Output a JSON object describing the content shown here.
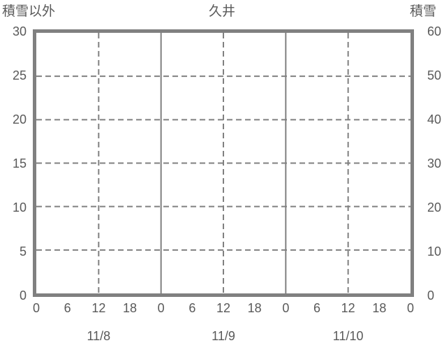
{
  "colors": {
    "line": "#808080",
    "text": "#595959",
    "background": "#ffffff"
  },
  "chart_data": {
    "type": "line",
    "title": "久井",
    "left_axis": {
      "label": "積雪以外",
      "ticks": [
        0,
        5,
        10,
        15,
        20,
        25,
        30
      ],
      "range": [
        0,
        30
      ]
    },
    "right_axis": {
      "label": "積雪",
      "ticks": [
        0,
        10,
        20,
        30,
        40,
        50,
        60
      ],
      "range": [
        0,
        60
      ]
    },
    "x_axis": {
      "hour_tick_labels": [
        "0",
        "6",
        "12",
        "18",
        "0",
        "6",
        "12",
        "18",
        "0",
        "6",
        "12",
        "18",
        "0"
      ],
      "date_labels": [
        "11/8",
        "11/9",
        "11/10"
      ],
      "hours_span": 72,
      "dashed_gridline_hours": [
        12,
        36,
        60
      ],
      "solid_gridline_hours": [
        24,
        48
      ]
    },
    "series": [],
    "grid": true,
    "legend": null
  }
}
